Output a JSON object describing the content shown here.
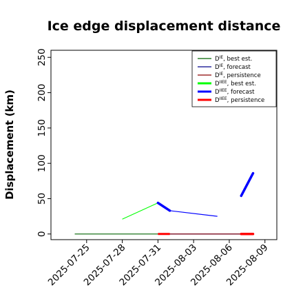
{
  "chart_data": {
    "type": "line",
    "title": "Ice edge displacement distance",
    "xlabel": "",
    "ylabel": "Displacement (km)",
    "x_ticks": [
      "2025-07-25",
      "2025-07-28",
      "2025-07-31",
      "2025-08-03",
      "2025-08-06",
      "2025-08-09"
    ],
    "highlighted_tick": "2025-07-31",
    "highlight_color": "#228b22",
    "xlim": [
      "2025-07-22",
      "2025-08-10"
    ],
    "ylim": [
      -8,
      260
    ],
    "y_ticks": [
      0,
      50,
      100,
      150,
      200,
      250
    ],
    "grid": false,
    "legend_position": "top-right",
    "series": [
      {
        "name": "D",
        "sup": "IE",
        "suffix": ", best est.",
        "color": "#006400",
        "width": 1.2,
        "points": [
          [
            "2025-07-24",
            0
          ],
          [
            "2025-07-31",
            0
          ]
        ]
      },
      {
        "name": "D",
        "sup": "IE",
        "suffix": ", forecast",
        "color": "#00008b",
        "width": 1.2,
        "points": [
          [
            "2025-07-31",
            0
          ],
          [
            "2025-08-08",
            0
          ]
        ]
      },
      {
        "name": "D",
        "sup": "IE",
        "suffix": ", persistence",
        "color": "#8b0000",
        "width": 1.2,
        "points": [
          [
            "2025-07-31",
            0
          ],
          [
            "2025-08-08",
            0
          ]
        ]
      },
      {
        "name": "D",
        "sup": "IIEE",
        "suffix": ", best est.",
        "color": "#00ff00",
        "width": 3,
        "points": [
          [
            "2025-07-28",
            21
          ],
          [
            "2025-07-31",
            44
          ]
        ]
      },
      {
        "name": "D",
        "sup": "IIEE",
        "suffix": ", forecast",
        "color": "#0000ff",
        "width": 3,
        "points": [
          [
            "2025-07-31",
            44
          ],
          [
            "2025-08-01",
            33
          ],
          [
            "2025-08-05",
            25
          ]
        ]
      },
      {
        "name": "D",
        "sup": "IIEE",
        "suffix": ", persistence",
        "color": "#ff0000",
        "width": 3,
        "points": [
          [
            "2025-07-31",
            0
          ],
          [
            "2025-08-01",
            0
          ]
        ]
      }
    ],
    "thick_segments": [
      {
        "series": "D, forecast",
        "color": "#0000ff",
        "points": [
          [
            "2025-07-31",
            44
          ],
          [
            "2025-08-01",
            33
          ]
        ]
      },
      {
        "series": "D, forecast",
        "color": "#0000ff",
        "points": [
          [
            "2025-08-07",
            54
          ],
          [
            "2025-08-08",
            86
          ]
        ]
      },
      {
        "series": "D, persistence",
        "color": "#ff0000",
        "points": [
          [
            "2025-08-07",
            0
          ],
          [
            "2025-08-08",
            0
          ]
        ]
      }
    ],
    "thin_segments": [
      {
        "color": "#0000ff",
        "points": [
          [
            "2025-08-01",
            33
          ],
          [
            "2025-08-05",
            25
          ]
        ]
      }
    ]
  }
}
